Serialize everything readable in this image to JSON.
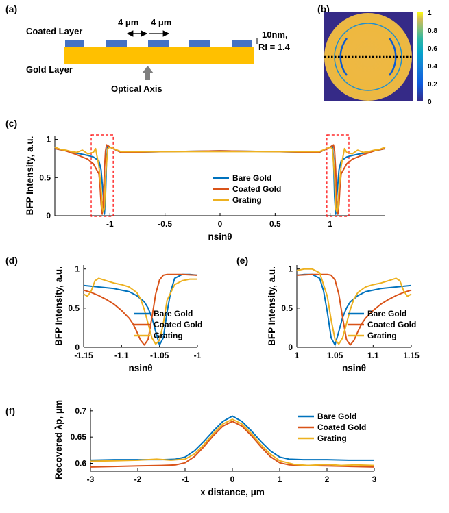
{
  "panel_labels": {
    "a": "(a)",
    "b": "(b)",
    "c": "(c)",
    "d": "(d)",
    "e": "(e)",
    "f": "(f)"
  },
  "colors": {
    "bare": "#0072BD",
    "coated": "#D95319",
    "grating": "#EDB120",
    "gold": "#FFC000",
    "coat_blocks": "#4472C4",
    "arrow": "#7F7F7F",
    "box": "#FF0000"
  },
  "schematic": {
    "coated_layer": "Coated Layer",
    "gold_layer": "Gold Layer",
    "optical_axis": "Optical Axis",
    "period_left": "4 μm",
    "period_right": "4 μm",
    "thickness_line1": "10nm,",
    "thickness_line2": "RI = 1.4"
  },
  "colorbar": {
    "ticks": [
      "1",
      "0.8",
      "0.6",
      "0.4",
      "0.2",
      "0"
    ]
  },
  "chart_data": [
    {
      "id": "c",
      "type": "line",
      "xlabel": "nsinθ",
      "ylabel": "BFP Intensity, a.u.",
      "xlim": [
        -1.5,
        1.5
      ],
      "ylim": [
        0,
        1.05
      ],
      "xticks": [
        {
          "v": -1,
          "t": "-1"
        },
        {
          "v": -0.5,
          "t": "-0.5"
        },
        {
          "v": 0,
          "t": "0"
        },
        {
          "v": 0.5,
          "t": "0.5"
        },
        {
          "v": 1,
          "t": "1"
        }
      ],
      "yticks": [
        {
          "v": 0,
          "t": "0"
        },
        {
          "v": 0.5,
          "t": "0.5"
        },
        {
          "v": 1,
          "t": "1"
        }
      ],
      "legend": "middle",
      "highlight_boxes": [
        [
          -1.17,
          -0.97
        ],
        [
          0.97,
          1.17
        ]
      ],
      "series": [
        {
          "name": "Bare Gold",
          "color": "bare",
          "x": [
            -1.5,
            -1.4,
            -1.3,
            -1.2,
            -1.15,
            -1.1,
            -1.08,
            -1.06,
            -1.05,
            -1.04,
            -1.03,
            -1.02,
            -1.0,
            -0.9,
            -0.5,
            0,
            0.5,
            0.9,
            1.0,
            1.02,
            1.03,
            1.04,
            1.05,
            1.06,
            1.08,
            1.1,
            1.15,
            1.2,
            1.3,
            1.4,
            1.5
          ],
          "y": [
            0.88,
            0.85,
            0.82,
            0.79,
            0.77,
            0.72,
            0.6,
            0.25,
            0.02,
            0.25,
            0.75,
            0.92,
            0.9,
            0.83,
            0.84,
            0.85,
            0.84,
            0.83,
            0.9,
            0.92,
            0.75,
            0.25,
            0.02,
            0.25,
            0.6,
            0.72,
            0.77,
            0.79,
            0.82,
            0.85,
            0.88
          ]
        },
        {
          "name": "Coated Gold",
          "color": "coated",
          "x": [
            -1.5,
            -1.4,
            -1.3,
            -1.2,
            -1.15,
            -1.1,
            -1.09,
            -1.08,
            -1.07,
            -1.06,
            -1.05,
            -1.04,
            -1.03,
            -1.0,
            -0.9,
            -0.5,
            0,
            0.5,
            0.9,
            1.0,
            1.03,
            1.04,
            1.05,
            1.06,
            1.07,
            1.08,
            1.09,
            1.1,
            1.15,
            1.2,
            1.3,
            1.4,
            1.5
          ],
          "y": [
            0.88,
            0.85,
            0.8,
            0.74,
            0.68,
            0.55,
            0.4,
            0.15,
            0.02,
            0.2,
            0.6,
            0.85,
            0.93,
            0.9,
            0.83,
            0.84,
            0.85,
            0.84,
            0.83,
            0.9,
            0.93,
            0.85,
            0.6,
            0.2,
            0.02,
            0.15,
            0.4,
            0.55,
            0.68,
            0.74,
            0.8,
            0.85,
            0.88
          ]
        },
        {
          "name": "Grating",
          "color": "grating",
          "x": [
            -1.5,
            -1.45,
            -1.4,
            -1.35,
            -1.3,
            -1.25,
            -1.2,
            -1.15,
            -1.13,
            -1.1,
            -1.08,
            -1.07,
            -1.06,
            -1.05,
            -1.04,
            -1.02,
            -1.0,
            -0.9,
            -0.5,
            0,
            0.5,
            0.9,
            1.0,
            1.02,
            1.04,
            1.05,
            1.06,
            1.07,
            1.08,
            1.1,
            1.13,
            1.15,
            1.2,
            1.25,
            1.3,
            1.35,
            1.4,
            1.45,
            1.5
          ],
          "y": [
            0.9,
            0.87,
            0.86,
            0.84,
            0.83,
            0.86,
            0.81,
            0.83,
            0.88,
            0.65,
            0.35,
            0.1,
            0.05,
            0.1,
            0.5,
            0.88,
            0.9,
            0.84,
            0.84,
            0.84,
            0.84,
            0.84,
            0.9,
            0.88,
            0.5,
            0.1,
            0.05,
            0.1,
            0.35,
            0.65,
            0.88,
            0.83,
            0.81,
            0.86,
            0.83,
            0.84,
            0.86,
            0.87,
            0.9
          ]
        }
      ]
    },
    {
      "id": "d",
      "type": "line",
      "xlabel": "nsinθ",
      "ylabel": "BFP Intensity, a.u.",
      "xlim": [
        -1.15,
        -1.0
      ],
      "ylim": [
        0,
        1.05
      ],
      "xticks": [
        {
          "v": -1.15,
          "t": "-1.15"
        },
        {
          "v": -1.1,
          "t": "-1.1"
        },
        {
          "v": -1.05,
          "t": "-1.05"
        },
        {
          "v": -1.0,
          "t": "-1"
        }
      ],
      "yticks": [
        {
          "v": 0,
          "t": "0"
        },
        {
          "v": 0.5,
          "t": "0.5"
        },
        {
          "v": 1,
          "t": "1"
        }
      ],
      "legend": "bottom-right",
      "series": [
        {
          "name": "Bare Gold",
          "color": "bare",
          "x": [
            -1.15,
            -1.13,
            -1.11,
            -1.1,
            -1.09,
            -1.08,
            -1.07,
            -1.065,
            -1.06,
            -1.055,
            -1.05,
            -1.045,
            -1.04,
            -1.035,
            -1.03,
            -1.02,
            -1.01,
            -1.0
          ],
          "y": [
            0.79,
            0.77,
            0.75,
            0.73,
            0.71,
            0.66,
            0.58,
            0.5,
            0.38,
            0.2,
            0.03,
            0.12,
            0.45,
            0.72,
            0.88,
            0.93,
            0.93,
            0.92
          ]
        },
        {
          "name": "Coated Gold",
          "color": "coated",
          "x": [
            -1.15,
            -1.14,
            -1.13,
            -1.12,
            -1.11,
            -1.1,
            -1.09,
            -1.085,
            -1.08,
            -1.075,
            -1.07,
            -1.065,
            -1.06,
            -1.055,
            -1.05,
            -1.045,
            -1.04,
            -1.03,
            -1.02,
            -1.0
          ],
          "y": [
            0.73,
            0.7,
            0.66,
            0.61,
            0.55,
            0.47,
            0.37,
            0.3,
            0.2,
            0.09,
            0.03,
            0.1,
            0.38,
            0.68,
            0.86,
            0.92,
            0.93,
            0.93,
            0.93,
            0.92
          ]
        },
        {
          "name": "Grating",
          "color": "grating",
          "x": [
            -1.15,
            -1.145,
            -1.14,
            -1.135,
            -1.13,
            -1.12,
            -1.11,
            -1.1,
            -1.09,
            -1.08,
            -1.075,
            -1.07,
            -1.065,
            -1.06,
            -1.055,
            -1.05,
            -1.045,
            -1.04,
            -1.03,
            -1.02,
            -1.01,
            -1.0
          ],
          "y": [
            0.68,
            0.65,
            0.72,
            0.85,
            0.88,
            0.85,
            0.82,
            0.8,
            0.77,
            0.7,
            0.62,
            0.48,
            0.3,
            0.12,
            0.04,
            0.09,
            0.3,
            0.6,
            0.8,
            0.85,
            0.87,
            0.87
          ]
        }
      ]
    },
    {
      "id": "e",
      "type": "line",
      "xlabel": "nsinθ",
      "ylabel": "BFP Intensity, a.u.",
      "xlim": [
        1.0,
        1.15
      ],
      "ylim": [
        0,
        1.05
      ],
      "xticks": [
        {
          "v": 1.0,
          "t": "1"
        },
        {
          "v": 1.05,
          "t": "1.05"
        },
        {
          "v": 1.1,
          "t": "1.1"
        },
        {
          "v": 1.15,
          "t": "1.15"
        }
      ],
      "yticks": [
        {
          "v": 0,
          "t": "0"
        },
        {
          "v": 0.5,
          "t": "0.5"
        },
        {
          "v": 1,
          "t": "1"
        }
      ],
      "legend": "bottom-right",
      "series": [
        {
          "name": "Bare Gold",
          "color": "bare",
          "x": [
            1.0,
            1.01,
            1.02,
            1.03,
            1.035,
            1.04,
            1.045,
            1.05,
            1.055,
            1.06,
            1.065,
            1.07,
            1.08,
            1.09,
            1.1,
            1.11,
            1.13,
            1.15
          ],
          "y": [
            0.92,
            0.93,
            0.93,
            0.88,
            0.72,
            0.45,
            0.12,
            0.03,
            0.2,
            0.38,
            0.5,
            0.58,
            0.66,
            0.71,
            0.73,
            0.75,
            0.77,
            0.79
          ]
        },
        {
          "name": "Coated Gold",
          "color": "coated",
          "x": [
            1.0,
            1.02,
            1.03,
            1.04,
            1.045,
            1.05,
            1.055,
            1.06,
            1.065,
            1.07,
            1.075,
            1.08,
            1.085,
            1.09,
            1.1,
            1.11,
            1.12,
            1.13,
            1.14,
            1.15
          ],
          "y": [
            0.92,
            0.93,
            0.93,
            0.93,
            0.92,
            0.86,
            0.68,
            0.38,
            0.1,
            0.03,
            0.09,
            0.2,
            0.3,
            0.37,
            0.47,
            0.55,
            0.61,
            0.66,
            0.7,
            0.73
          ]
        },
        {
          "name": "Grating",
          "color": "grating",
          "x": [
            1.0,
            1.01,
            1.02,
            1.03,
            1.04,
            1.045,
            1.05,
            1.055,
            1.06,
            1.065,
            1.07,
            1.075,
            1.08,
            1.09,
            1.1,
            1.11,
            1.12,
            1.13,
            1.135,
            1.14,
            1.145,
            1.15
          ],
          "y": [
            0.98,
            1.0,
            1.0,
            0.95,
            0.65,
            0.35,
            0.1,
            0.04,
            0.12,
            0.3,
            0.48,
            0.62,
            0.7,
            0.77,
            0.8,
            0.82,
            0.85,
            0.88,
            0.85,
            0.72,
            0.65,
            0.68
          ]
        }
      ]
    },
    {
      "id": "f",
      "type": "line",
      "xlabel": "x distance, μm",
      "ylabel": "Recovered λp, μm",
      "xlim": [
        -3,
        3
      ],
      "ylim": [
        0.585,
        0.705
      ],
      "xticks": [
        {
          "v": -3,
          "t": "-3"
        },
        {
          "v": -2,
          "t": "-2"
        },
        {
          "v": -1,
          "t": "-1"
        },
        {
          "v": 0,
          "t": "0"
        },
        {
          "v": 1,
          "t": "1"
        },
        {
          "v": 2,
          "t": "2"
        },
        {
          "v": 3,
          "t": "3"
        }
      ],
      "yticks": [
        {
          "v": 0.6,
          "t": "0.6"
        },
        {
          "v": 0.65,
          "t": "0.65"
        },
        {
          "v": 0.7,
          "t": "0.7"
        }
      ],
      "legend": "top-right",
      "series": [
        {
          "name": "Bare Gold",
          "color": "bare",
          "x": [
            -3,
            -2.5,
            -2,
            -1.5,
            -1.2,
            -1,
            -0.8,
            -0.6,
            -0.4,
            -0.2,
            0,
            0.2,
            0.4,
            0.6,
            0.8,
            1,
            1.2,
            1.5,
            2,
            2.5,
            3
          ],
          "y": [
            0.606,
            0.607,
            0.607,
            0.607,
            0.608,
            0.612,
            0.624,
            0.642,
            0.662,
            0.68,
            0.69,
            0.68,
            0.662,
            0.642,
            0.624,
            0.612,
            0.608,
            0.607,
            0.607,
            0.606,
            0.606
          ]
        },
        {
          "name": "Coated Gold",
          "color": "coated",
          "x": [
            -3,
            -2.5,
            -2,
            -1.5,
            -1.2,
            -1,
            -0.8,
            -0.6,
            -0.4,
            -0.2,
            0,
            0.2,
            0.4,
            0.6,
            0.8,
            1,
            1.2,
            1.5,
            2,
            2.5,
            3
          ],
          "y": [
            0.593,
            0.594,
            0.595,
            0.596,
            0.597,
            0.601,
            0.613,
            0.632,
            0.653,
            0.671,
            0.68,
            0.671,
            0.653,
            0.632,
            0.613,
            0.601,
            0.597,
            0.596,
            0.595,
            0.594,
            0.593
          ]
        },
        {
          "name": "Grating",
          "color": "grating",
          "x": [
            -3,
            -2.5,
            -2,
            -1.6,
            -1.3,
            -1,
            -0.8,
            -0.6,
            -0.4,
            -0.2,
            0,
            0.2,
            0.4,
            0.6,
            0.8,
            1,
            1.3,
            1.6,
            2,
            2.3,
            2.6,
            3
          ],
          "y": [
            0.604,
            0.605,
            0.606,
            0.608,
            0.606,
            0.608,
            0.618,
            0.636,
            0.657,
            0.675,
            0.684,
            0.675,
            0.657,
            0.636,
            0.618,
            0.605,
            0.598,
            0.596,
            0.598,
            0.596,
            0.597,
            0.596
          ]
        }
      ]
    }
  ]
}
